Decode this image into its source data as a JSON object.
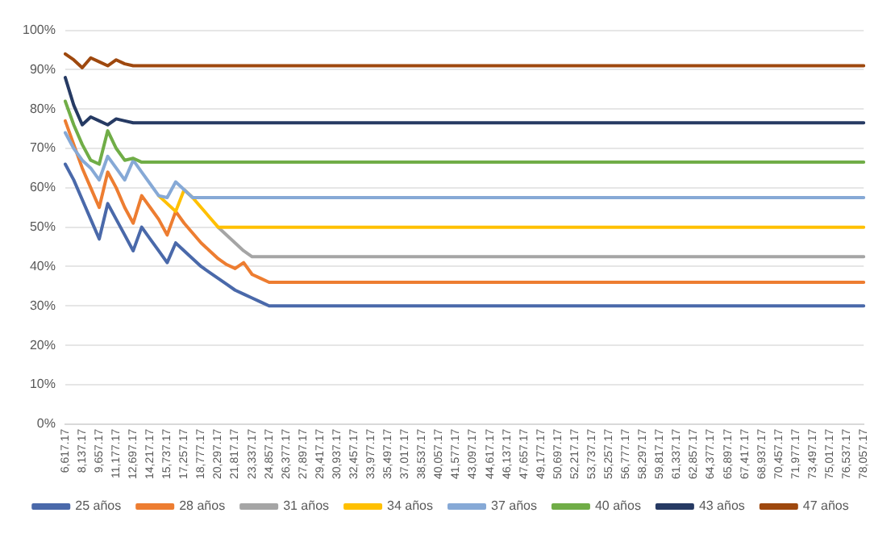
{
  "chart_data": {
    "type": "line",
    "categories": [
      "6,617.17",
      null,
      "8,137.17",
      null,
      "9,657.17",
      null,
      "11,177.17",
      null,
      "12,697.17",
      null,
      "14,217.17",
      null,
      "15,737.17",
      null,
      "17,257.17",
      null,
      "18,777.17",
      null,
      "20,297.17",
      null,
      "21,817.17",
      null,
      "23,337.17",
      null,
      "24,857.17",
      null,
      "26,377.17",
      null,
      "27,897.17",
      null,
      "29,417.17",
      null,
      "30,937.17",
      null,
      "32,457.17",
      null,
      "33,977.17",
      null,
      "35,497.17",
      null,
      "37,017.17",
      null,
      "38,537.17",
      null,
      "40,057.17",
      null,
      "41,577.17",
      null,
      "43,097.17",
      null,
      "44,617.17",
      null,
      "46,137.17",
      null,
      "47,657.17",
      null,
      "49,177.17",
      null,
      "50,697.17",
      null,
      "52,217.17",
      null,
      "53,737.17",
      null,
      "55,257.17",
      null,
      "56,777.17",
      null,
      "58,297.17",
      null,
      "59,817.17",
      null,
      "61,337.17",
      null,
      "62,857.17",
      null,
      "64,377.17",
      null,
      "65,897.17",
      null,
      "67,417.17",
      null,
      "68,937.17",
      null,
      "70,457.17",
      null,
      "71,977.17",
      null,
      "73,497.17",
      null,
      "75,017.17",
      null,
      "76,537.17",
      null,
      "78,057.17"
    ],
    "ylim": [
      0,
      100
    ],
    "yticks": [
      {
        "value": 0,
        "label": "0%"
      },
      {
        "value": 10,
        "label": "10%"
      },
      {
        "value": 20,
        "label": "20%"
      },
      {
        "value": 30,
        "label": "30%"
      },
      {
        "value": 40,
        "label": "40%"
      },
      {
        "value": 50,
        "label": "50%"
      },
      {
        "value": 60,
        "label": "60%"
      },
      {
        "value": 70,
        "label": "70%"
      },
      {
        "value": 80,
        "label": "80%"
      },
      {
        "value": 90,
        "label": "90%"
      },
      {
        "value": 100,
        "label": "100%"
      }
    ],
    "grid": "y",
    "legend": "bottom",
    "marker": "none",
    "line_style": "solid",
    "series": [
      {
        "name": "25 años",
        "color": "#4a69aa",
        "values": [
          66,
          62,
          57,
          52,
          47,
          56,
          52,
          48,
          44,
          50,
          47,
          44,
          41,
          46,
          44,
          42,
          40,
          38.5,
          37,
          35.5,
          34,
          33,
          32,
          31,
          30,
          30,
          30,
          30,
          30,
          30,
          30,
          30,
          30,
          30,
          30,
          30,
          30,
          30,
          30,
          30,
          30,
          30,
          30,
          30,
          30,
          30,
          30,
          30,
          30,
          30,
          30,
          30,
          30,
          30,
          30,
          30,
          30,
          30,
          30,
          30,
          30,
          30,
          30,
          30,
          30,
          30,
          30,
          30,
          30,
          30,
          30,
          30,
          30,
          30,
          30,
          30,
          30,
          30,
          30,
          30,
          30,
          30,
          30,
          30,
          30,
          30,
          30,
          30,
          30,
          30,
          30,
          30,
          30,
          30,
          30
        ]
      },
      {
        "name": "28 años",
        "color": "#ed7d31",
        "values": [
          77,
          71,
          65,
          60,
          55,
          64,
          60,
          55,
          51,
          58,
          55,
          52,
          48,
          54,
          51,
          48.5,
          46,
          44,
          42,
          40.5,
          39.5,
          41,
          38,
          37,
          36,
          36,
          36,
          36,
          36,
          36,
          36,
          36,
          36,
          36,
          36,
          36,
          36,
          36,
          36,
          36,
          36,
          36,
          36,
          36,
          36,
          36,
          36,
          36,
          36,
          36,
          36,
          36,
          36,
          36,
          36,
          36,
          36,
          36,
          36,
          36,
          36,
          36,
          36,
          36,
          36,
          36,
          36,
          36,
          36,
          36,
          36,
          36,
          36,
          36,
          36,
          36,
          36,
          36,
          36,
          36,
          36,
          36,
          36,
          36,
          36,
          36,
          36,
          36,
          36,
          36,
          36,
          36,
          36,
          36,
          36
        ]
      },
      {
        "name": "31 años",
        "color": "#a5a5a5",
        "values": [
          null,
          null,
          null,
          null,
          null,
          null,
          null,
          null,
          null,
          null,
          null,
          null,
          null,
          null,
          null,
          null,
          null,
          null,
          50,
          48,
          46,
          44,
          42.5,
          42.5,
          42.5,
          42.5,
          42.5,
          42.5,
          42.5,
          42.5,
          42.5,
          42.5,
          42.5,
          42.5,
          42.5,
          42.5,
          42.5,
          42.5,
          42.5,
          42.5,
          42.5,
          42.5,
          42.5,
          42.5,
          42.5,
          42.5,
          42.5,
          42.5,
          42.5,
          42.5,
          42.5,
          42.5,
          42.5,
          42.5,
          42.5,
          42.5,
          42.5,
          42.5,
          42.5,
          42.5,
          42.5,
          42.5,
          42.5,
          42.5,
          42.5,
          42.5,
          42.5,
          42.5,
          42.5,
          42.5,
          42.5,
          42.5,
          42.5,
          42.5,
          42.5,
          42.5,
          42.5,
          42.5,
          42.5,
          42.5,
          42.5,
          42.5,
          42.5,
          42.5,
          42.5,
          42.5,
          42.5,
          42.5,
          42.5,
          42.5,
          42.5,
          42.5,
          42.5,
          42.5,
          42.5
        ]
      },
      {
        "name": "34 años",
        "color": "#ffc000",
        "values": [
          null,
          null,
          null,
          null,
          null,
          null,
          null,
          null,
          null,
          null,
          null,
          58,
          56,
          54,
          59.5,
          57.5,
          55,
          52.5,
          50,
          50,
          50,
          50,
          50,
          50,
          50,
          50,
          50,
          50,
          50,
          50,
          50,
          50,
          50,
          50,
          50,
          50,
          50,
          50,
          50,
          50,
          50,
          50,
          50,
          50,
          50,
          50,
          50,
          50,
          50,
          50,
          50,
          50,
          50,
          50,
          50,
          50,
          50,
          50,
          50,
          50,
          50,
          50,
          50,
          50,
          50,
          50,
          50,
          50,
          50,
          50,
          50,
          50,
          50,
          50,
          50,
          50,
          50,
          50,
          50,
          50,
          50,
          50,
          50,
          50,
          50,
          50,
          50,
          50,
          50,
          50,
          50,
          50,
          50,
          50,
          50
        ]
      },
      {
        "name": "37 años",
        "color": "#86a9d6",
        "values": [
          74,
          70,
          67,
          65,
          62,
          68,
          65,
          62,
          67,
          64,
          61,
          58,
          57.5,
          61.5,
          59.5,
          57.5,
          57.5,
          57.5,
          57.5,
          57.5,
          57.5,
          57.5,
          57.5,
          57.5,
          57.5,
          57.5,
          57.5,
          57.5,
          57.5,
          57.5,
          57.5,
          57.5,
          57.5,
          57.5,
          57.5,
          57.5,
          57.5,
          57.5,
          57.5,
          57.5,
          57.5,
          57.5,
          57.5,
          57.5,
          57.5,
          57.5,
          57.5,
          57.5,
          57.5,
          57.5,
          57.5,
          57.5,
          57.5,
          57.5,
          57.5,
          57.5,
          57.5,
          57.5,
          57.5,
          57.5,
          57.5,
          57.5,
          57.5,
          57.5,
          57.5,
          57.5,
          57.5,
          57.5,
          57.5,
          57.5,
          57.5,
          57.5,
          57.5,
          57.5,
          57.5,
          57.5,
          57.5,
          57.5,
          57.5,
          57.5,
          57.5,
          57.5,
          57.5,
          57.5,
          57.5,
          57.5,
          57.5,
          57.5,
          57.5,
          57.5,
          57.5,
          57.5,
          57.5,
          57.5,
          57.5
        ]
      },
      {
        "name": "40 años",
        "color": "#70ad47",
        "values": [
          82,
          76,
          71,
          67,
          66,
          74.5,
          70,
          67,
          67.5,
          66.5,
          66.5,
          66.5,
          66.5,
          66.5,
          66.5,
          66.5,
          66.5,
          66.5,
          66.5,
          66.5,
          66.5,
          66.5,
          66.5,
          66.5,
          66.5,
          66.5,
          66.5,
          66.5,
          66.5,
          66.5,
          66.5,
          66.5,
          66.5,
          66.5,
          66.5,
          66.5,
          66.5,
          66.5,
          66.5,
          66.5,
          66.5,
          66.5,
          66.5,
          66.5,
          66.5,
          66.5,
          66.5,
          66.5,
          66.5,
          66.5,
          66.5,
          66.5,
          66.5,
          66.5,
          66.5,
          66.5,
          66.5,
          66.5,
          66.5,
          66.5,
          66.5,
          66.5,
          66.5,
          66.5,
          66.5,
          66.5,
          66.5,
          66.5,
          66.5,
          66.5,
          66.5,
          66.5,
          66.5,
          66.5,
          66.5,
          66.5,
          66.5,
          66.5,
          66.5,
          66.5,
          66.5,
          66.5,
          66.5,
          66.5,
          66.5,
          66.5,
          66.5,
          66.5,
          66.5,
          66.5,
          66.5,
          66.5,
          66.5,
          66.5,
          66.5
        ]
      },
      {
        "name": "43 años",
        "color": "#263a63",
        "values": [
          88,
          81,
          76,
          78,
          77,
          76,
          77.5,
          77,
          76.5,
          76.5,
          76.5,
          76.5,
          76.5,
          76.5,
          76.5,
          76.5,
          76.5,
          76.5,
          76.5,
          76.5,
          76.5,
          76.5,
          76.5,
          76.5,
          76.5,
          76.5,
          76.5,
          76.5,
          76.5,
          76.5,
          76.5,
          76.5,
          76.5,
          76.5,
          76.5,
          76.5,
          76.5,
          76.5,
          76.5,
          76.5,
          76.5,
          76.5,
          76.5,
          76.5,
          76.5,
          76.5,
          76.5,
          76.5,
          76.5,
          76.5,
          76.5,
          76.5,
          76.5,
          76.5,
          76.5,
          76.5,
          76.5,
          76.5,
          76.5,
          76.5,
          76.5,
          76.5,
          76.5,
          76.5,
          76.5,
          76.5,
          76.5,
          76.5,
          76.5,
          76.5,
          76.5,
          76.5,
          76.5,
          76.5,
          76.5,
          76.5,
          76.5,
          76.5,
          76.5,
          76.5,
          76.5,
          76.5,
          76.5,
          76.5,
          76.5,
          76.5,
          76.5,
          76.5,
          76.5,
          76.5,
          76.5,
          76.5,
          76.5,
          76.5,
          76.5
        ]
      },
      {
        "name": "47 años",
        "color": "#9e480e",
        "values": [
          94,
          92.5,
          90.5,
          93,
          92,
          91,
          92.5,
          91.5,
          91,
          91,
          91,
          91,
          91,
          91,
          91,
          91,
          91,
          91,
          91,
          91,
          91,
          91,
          91,
          91,
          91,
          91,
          91,
          91,
          91,
          91,
          91,
          91,
          91,
          91,
          91,
          91,
          91,
          91,
          91,
          91,
          91,
          91,
          91,
          91,
          91,
          91,
          91,
          91,
          91,
          91,
          91,
          91,
          91,
          91,
          91,
          91,
          91,
          91,
          91,
          91,
          91,
          91,
          91,
          91,
          91,
          91,
          91,
          91,
          91,
          91,
          91,
          91,
          91,
          91,
          91,
          91,
          91,
          91,
          91,
          91,
          91,
          91,
          91,
          91,
          91,
          91,
          91,
          91,
          91,
          91,
          91,
          91,
          91,
          91,
          91
        ]
      }
    ]
  }
}
